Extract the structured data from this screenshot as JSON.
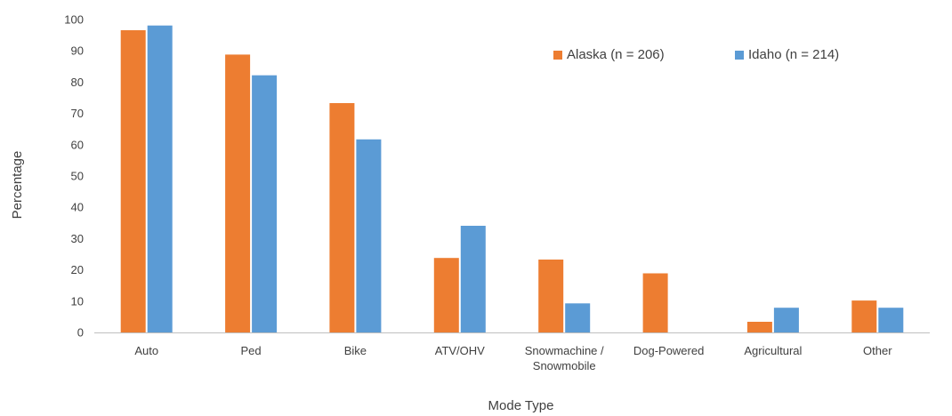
{
  "chart_data": {
    "type": "bar",
    "title": "",
    "xlabel": "Mode Type",
    "ylabel": "Percentage",
    "ylim": [
      0,
      100
    ],
    "yticks": [
      0,
      10,
      20,
      30,
      40,
      50,
      60,
      70,
      80,
      90,
      100
    ],
    "grid": false,
    "legend_position": "top-right",
    "categories": [
      "Auto",
      "Ped",
      "Bike",
      "ATV/OHV",
      "Snowmachine / Snowmobile",
      "Dog-Powered",
      "Agricultural",
      "Other"
    ],
    "category_label_lines": [
      [
        "Auto"
      ],
      [
        "Ped"
      ],
      [
        "Bike"
      ],
      [
        "ATV/OHV"
      ],
      [
        "Snowmachine /",
        "Snowmobile"
      ],
      [
        "Dog-Powered"
      ],
      [
        "Agricultural"
      ],
      [
        "Other"
      ]
    ],
    "series": [
      {
        "name": "Alaska (n = 206)",
        "color": "#ED7D31",
        "values": [
          96.6,
          88.8,
          73.3,
          23.8,
          23.3,
          18.9,
          3.4,
          10.2
        ]
      },
      {
        "name": "Idaho (n = 214)",
        "color": "#5B9BD5",
        "values": [
          98.1,
          82.2,
          61.7,
          34.1,
          9.3,
          0,
          7.9,
          7.9
        ]
      }
    ]
  }
}
